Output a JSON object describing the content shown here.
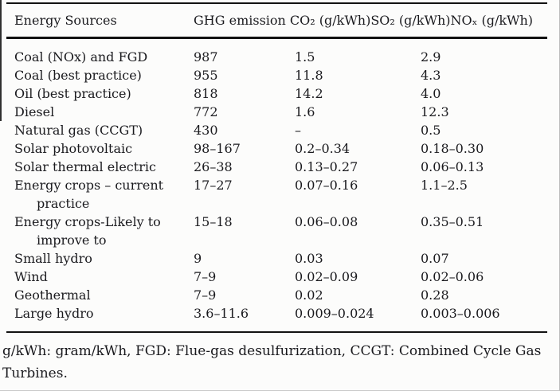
{
  "table": {
    "header": {
      "energy_sources": "Energy Sources",
      "emissions": "GHG emission CO₂ (g/kWh)SO₂ (g/kWh)NOₓ (g/kWh)"
    },
    "rows": [
      {
        "name": "Coal (NOx) and FGD",
        "co2": "987",
        "so2": "1.5",
        "nox": "2.9"
      },
      {
        "name": "Coal (best practice)",
        "co2": "955",
        "so2": "11.8",
        "nox": "4.3"
      },
      {
        "name": "Oil (best practice)",
        "co2": "818",
        "so2": "14.2",
        "nox": "4.0"
      },
      {
        "name": "Diesel",
        "co2": "772",
        "so2": "1.6",
        "nox": "12.3"
      },
      {
        "name": "Natural gas (CCGT)",
        "co2": "430",
        "so2": "–",
        "nox": "0.5"
      },
      {
        "name": "Solar photovoltaic",
        "co2": "98–167",
        "so2": "0.2–0.34",
        "nox": "0.18–0.30"
      },
      {
        "name": "Solar thermal electric",
        "co2": "26–38",
        "so2": "0.13–0.27",
        "nox": "0.06–0.13"
      },
      {
        "name": "Energy crops – current",
        "name2": "practice",
        "co2": "17–27",
        "so2": "0.07–0.16",
        "nox": "1.1–2.5"
      },
      {
        "name": "Energy crops-Likely to",
        "name2": "improve to",
        "co2": "15–18",
        "so2": "0.06–0.08",
        "nox": "0.35–0.51"
      },
      {
        "name": "Small hydro",
        "co2": "9",
        "so2": "0.03",
        "nox": "0.07"
      },
      {
        "name": "Wind",
        "co2": "7–9",
        "so2": "0.02–0.09",
        "nox": "0.02–0.06"
      },
      {
        "name": "Geothermal",
        "co2": "7–9",
        "so2": "0.02",
        "nox": "0.28"
      },
      {
        "name": "Large hydro",
        "co2": "3.6–11.6",
        "so2": "0.009–0.024",
        "nox": "0.003–0.006"
      }
    ],
    "footnote_lines": {
      "line1": "g/kWh: gram/kWh, FGD: Flue-gas desulfurization, CCGT: Combined Cycle Gas",
      "line2": "Turbines."
    }
  },
  "colors": {
    "text": "#1a1a1e",
    "rule": "#121212",
    "background": "#fcfcfb"
  }
}
